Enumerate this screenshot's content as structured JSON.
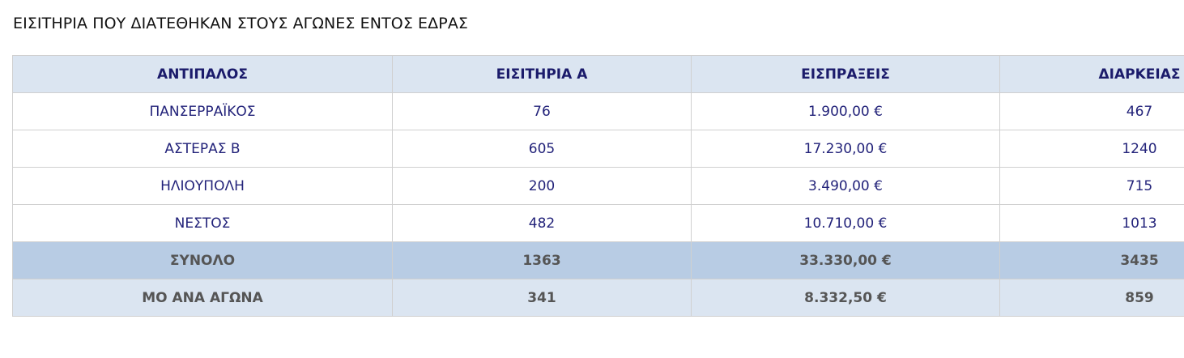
{
  "title": "ΕΙΣΙΤΗΡΙΑ ΠΟΥ ΔΙΑΤΕΘΗΚΑΝ ΣΤΟΥΣ ΑΓΩΝΕΣ ΕΝΤΟΣ ΕΔΡΑΣ",
  "table": {
    "header": [
      "ΑΝΤΙΠΑΛΟΣ",
      "ΕΙΣΙΤΗΡΙΑ Α",
      "ΕΙΣΠΡΑΞΕΙΣ",
      "ΔΙΑΡΚΕΙΑΣ"
    ],
    "rows": [
      [
        "ΠΑΝΣΕΡΡΑΪΚΟΣ",
        "76",
        "1.900,00 €",
        "467"
      ],
      [
        "ΑΣΤΕΡΑΣ Β",
        "605",
        "17.230,00 €",
        "1240"
      ],
      [
        "ΗΛΙΟΥΠΟΛΗ",
        "200",
        "3.490,00 €",
        "715"
      ],
      [
        "ΝΕΣΤΟΣ",
        "482",
        "10.710,00 €",
        "1013"
      ]
    ],
    "total": [
      "ΣΥΝΟΛΟ",
      "1363",
      "33.330,00 €",
      "3435"
    ],
    "average": [
      "ΜΟ ΑΝΑ ΑΓΩΝΑ",
      "341",
      "8.332,50 €",
      "859"
    ]
  }
}
